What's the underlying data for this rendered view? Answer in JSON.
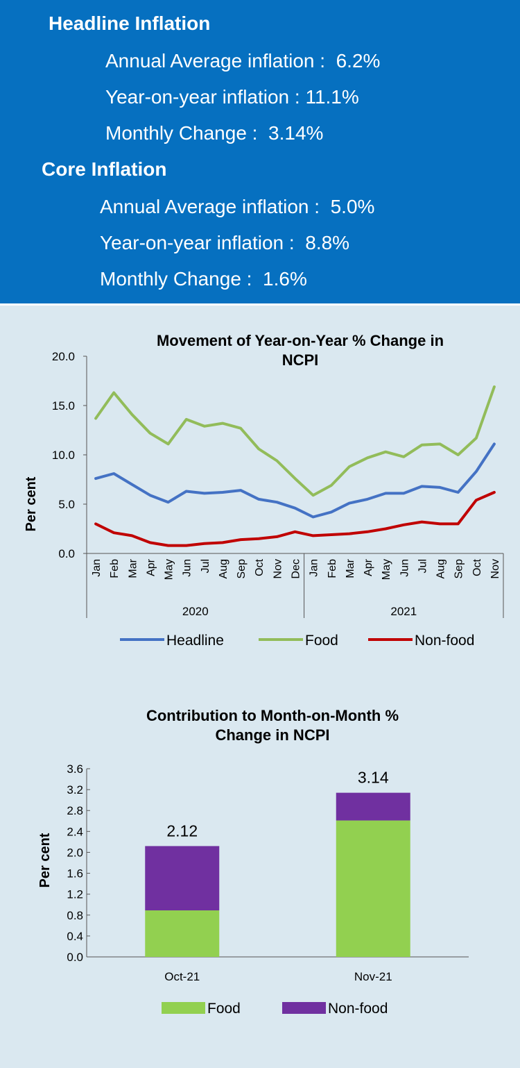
{
  "colors": {
    "panel_bg": "#0670c0",
    "page_bg": "#dae8f0",
    "headline": "#4472c4",
    "food_line": "#92bc5a",
    "nonfood_line": "#c00000",
    "food_bar": "#92d050",
    "nonfood_bar": "#7030a0"
  },
  "summary": {
    "headline": {
      "title": "Headline Inflation",
      "annual_average": "Annual Average inflation :  6.2%",
      "year_on_year": "Year-on-year inflation : 11.1%",
      "monthly_change": "Monthly Change :  3.14%"
    },
    "core": {
      "title": "Core Inflation",
      "annual_average": "Annual Average inflation :  5.0%",
      "year_on_year": "Year-on-year inflation :  8.8%",
      "monthly_change": "Monthly Change :  1.6%"
    }
  },
  "chart_data": [
    {
      "type": "line",
      "title_lines": [
        "Movement of Year-on-Year % Change in",
        "NCPI"
      ],
      "ylabel": "Per cent",
      "ylim": [
        0,
        20
      ],
      "yticks": [
        "0.0",
        "5.0",
        "10.0",
        "15.0",
        "20.0"
      ],
      "yticks_values": [
        0,
        5,
        10,
        15,
        20
      ],
      "categories": [
        "Jan",
        "Feb",
        "Mar",
        "Apr",
        "May",
        "Jun",
        "Jul",
        "Aug",
        "Sep",
        "Oct",
        "Nov",
        "Dec",
        "Jan",
        "Feb",
        "Mar",
        "Apr",
        "May",
        "Jun",
        "Jul",
        "Aug",
        "Sep",
        "Oct",
        "Nov"
      ],
      "year_groups": [
        {
          "label": "2020",
          "count": 12
        },
        {
          "label": "2021",
          "count": 11
        }
      ],
      "series": [
        {
          "name": "Headline",
          "values": [
            7.6,
            8.1,
            7.0,
            5.9,
            5.2,
            6.3,
            6.1,
            6.2,
            6.4,
            5.5,
            5.2,
            4.6,
            3.7,
            4.2,
            5.1,
            5.5,
            6.1,
            6.1,
            6.8,
            6.7,
            6.2,
            8.3,
            11.1
          ]
        },
        {
          "name": "Food",
          "values": [
            13.7,
            16.3,
            14.1,
            12.2,
            11.1,
            13.6,
            12.9,
            13.2,
            12.7,
            10.6,
            9.4,
            7.6,
            5.9,
            6.9,
            8.8,
            9.7,
            10.3,
            9.8,
            11.0,
            11.1,
            10.0,
            11.7,
            16.9
          ]
        },
        {
          "name": "Non-food",
          "values": [
            3.0,
            2.1,
            1.8,
            1.1,
            0.8,
            0.8,
            1.0,
            1.1,
            1.4,
            1.5,
            1.7,
            2.2,
            1.8,
            1.9,
            2.0,
            2.2,
            2.5,
            2.9,
            3.2,
            3.0,
            3.0,
            5.4,
            6.2
          ]
        }
      ]
    },
    {
      "type": "bar",
      "stacked": true,
      "title_lines": [
        "Contribution to Month-on-Month %",
        "Change in NCPI"
      ],
      "ylabel": "Per cent",
      "ylim": [
        0,
        3.6
      ],
      "yticks": [
        "0.0",
        "0.4",
        "0.8",
        "1.2",
        "1.6",
        "2.0",
        "2.4",
        "2.8",
        "3.2",
        "3.6"
      ],
      "yticks_values": [
        0,
        0.4,
        0.8,
        1.2,
        1.6,
        2.0,
        2.4,
        2.8,
        3.2,
        3.6
      ],
      "categories": [
        "Oct-21",
        "Nov-21"
      ],
      "series": [
        {
          "name": "Food",
          "values": [
            0.89,
            2.61
          ]
        },
        {
          "name": "Non-food",
          "values": [
            1.23,
            0.53
          ]
        }
      ],
      "totals": [
        "2.12",
        "3.14"
      ]
    }
  ]
}
